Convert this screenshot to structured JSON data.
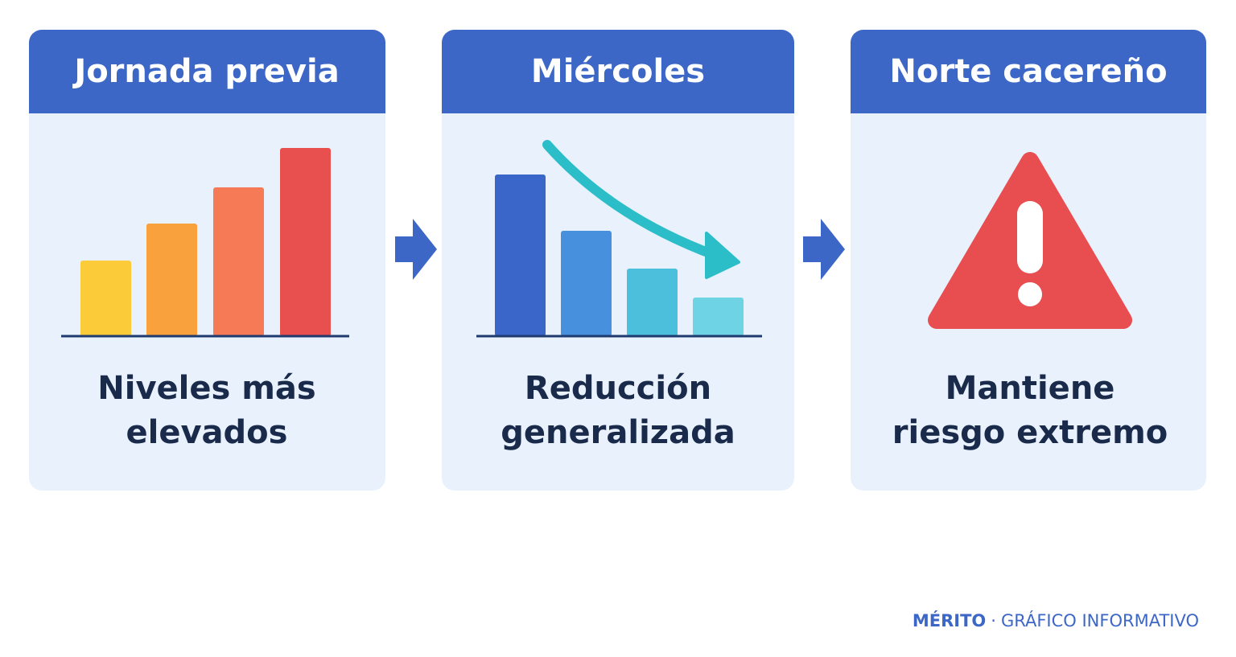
{
  "panels": [
    {
      "title": "Jornada previa",
      "caption": [
        "Niveles más",
        "elevados"
      ]
    },
    {
      "title": "Miércoles",
      "caption": [
        "Reducción",
        "generalizada"
      ]
    },
    {
      "title": "Norte cacereño",
      "caption": [
        "Mantiene",
        "riesgo extremo"
      ]
    }
  ],
  "footer": {
    "brand": "MÉRITO",
    "separator": "·",
    "label": "GRÁFICO INFORMATIVO"
  }
}
